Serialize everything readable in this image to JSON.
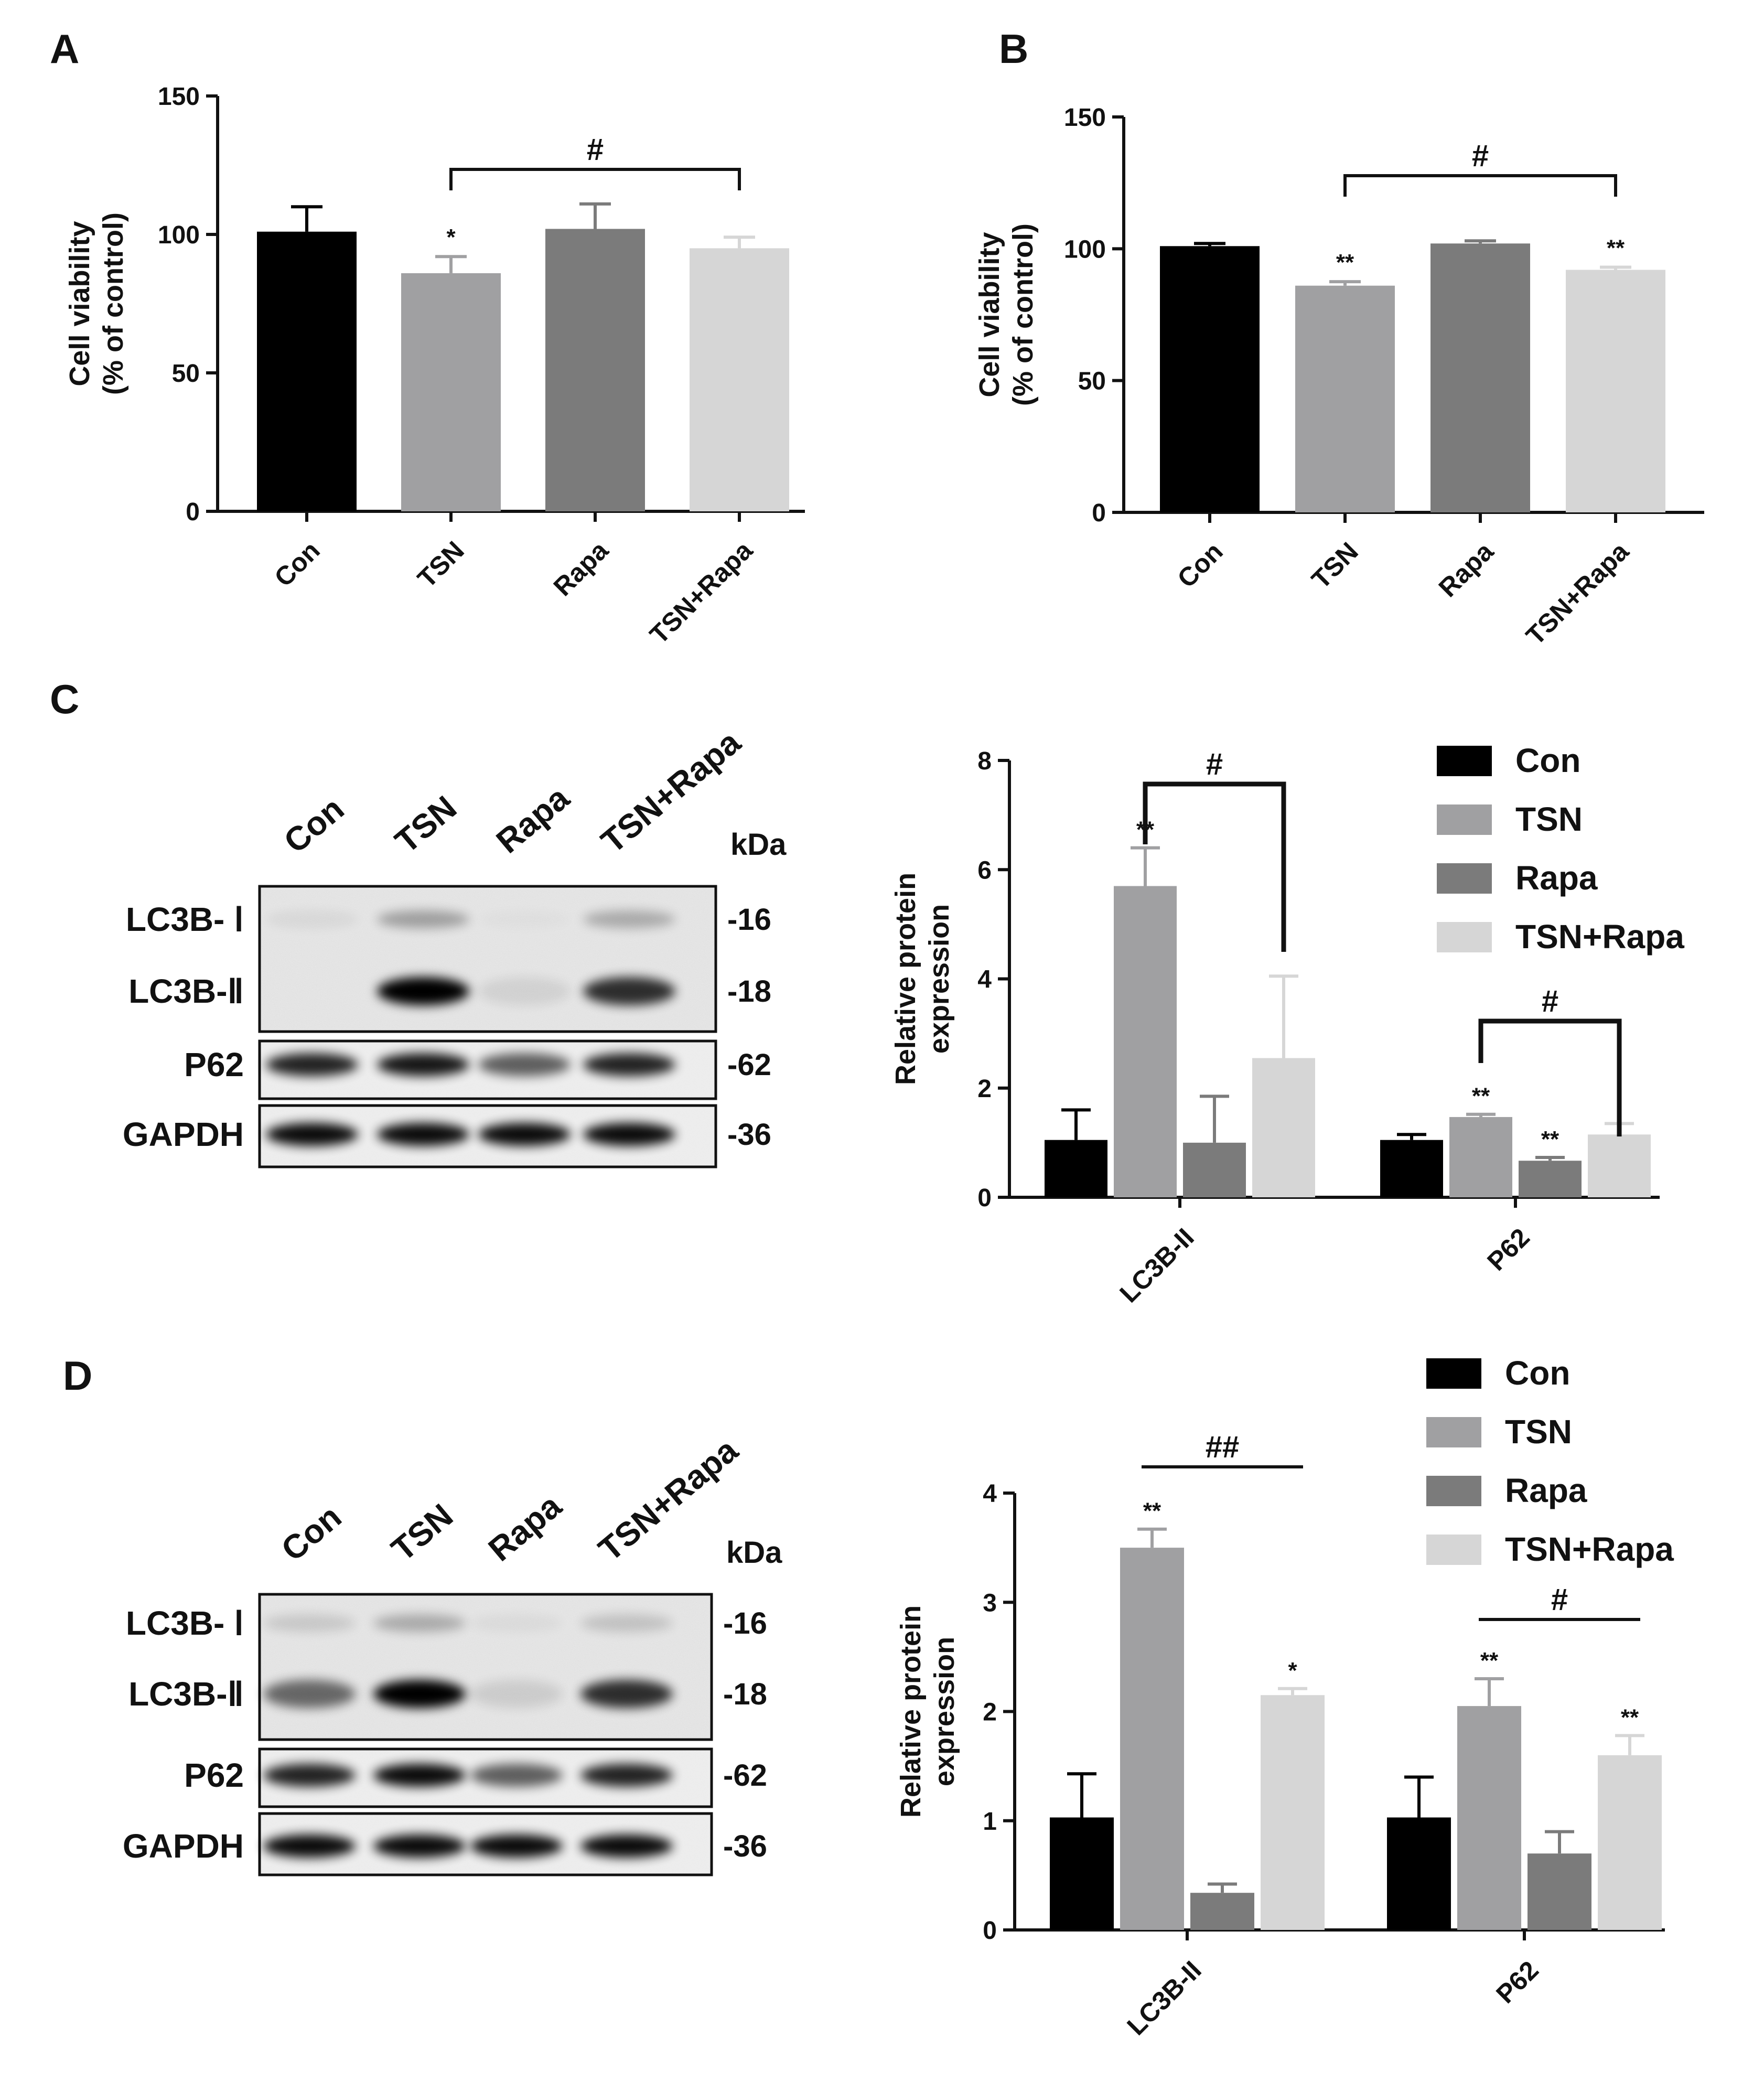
{
  "colors": {
    "Con": "#000000",
    "TSN": "#a0a0a2",
    "Rapa": "#7b7b7b",
    "TSN+Rapa": "#d6d6d6"
  },
  "chart_data": [
    {
      "panel": "A",
      "type": "bar",
      "categories": [
        "Con",
        "TSN",
        "Rapa",
        "TSN+Rapa"
      ],
      "values": [
        101,
        86,
        102,
        95
      ],
      "errors": [
        9,
        6,
        9,
        4
      ],
      "ylabel": [
        "Cell viability",
        "(% of control)"
      ],
      "ylim": [
        0,
        150
      ],
      "yticks": [
        0,
        50,
        100,
        150
      ],
      "marks": [
        "",
        "*",
        "",
        ""
      ],
      "brackets": [
        {
          "from": 1,
          "to": 3,
          "label": "#"
        }
      ],
      "grid": false
    },
    {
      "panel": "B",
      "type": "bar",
      "categories": [
        "Con",
        "TSN",
        "Rapa",
        "TSN+Rapa"
      ],
      "values": [
        101,
        86,
        102,
        92
      ],
      "errors": [
        1,
        1.5,
        1,
        1
      ],
      "ylabel": [
        "Cell viability",
        "(% of control)"
      ],
      "ylim": [
        0,
        150
      ],
      "yticks": [
        0,
        50,
        100,
        150
      ],
      "marks": [
        "",
        "**",
        "",
        "**"
      ],
      "brackets": [
        {
          "from": 1,
          "to": 3,
          "label": "#"
        }
      ],
      "grid": false
    },
    {
      "panel": "C",
      "type": "bar",
      "categories": [
        "LC3B-II",
        "P62"
      ],
      "series": [
        {
          "name": "Con",
          "values": [
            1.05,
            1.05
          ],
          "errors": [
            0.55,
            0.1
          ],
          "marks": [
            "",
            ""
          ]
        },
        {
          "name": "TSN",
          "values": [
            5.7,
            1.47
          ],
          "errors": [
            0.7,
            0.05
          ],
          "marks": [
            "**",
            "**"
          ]
        },
        {
          "name": "Rapa",
          "values": [
            1.0,
            0.67
          ],
          "errors": [
            0.85,
            0.06
          ],
          "marks": [
            "",
            "**"
          ]
        },
        {
          "name": "TSN+Rapa",
          "values": [
            2.55,
            1.15
          ],
          "errors": [
            1.5,
            0.2
          ],
          "marks": [
            "",
            ""
          ]
        }
      ],
      "ylabel": [
        "Relative protein",
        "expression"
      ],
      "ylim": [
        0,
        8
      ],
      "yticks": [
        0,
        2,
        4,
        6,
        8
      ],
      "brackets": [
        {
          "group": 0,
          "from": 1,
          "to": 3,
          "label": "#",
          "style": "bracket"
        },
        {
          "group": 1,
          "from": 1,
          "to": 3,
          "label": "#",
          "style": "bracket"
        }
      ],
      "legend": "top-right",
      "grid": false
    },
    {
      "panel": "D",
      "type": "bar",
      "categories": [
        "LC3B-II",
        "P62"
      ],
      "series": [
        {
          "name": "Con",
          "values": [
            1.03,
            1.03
          ],
          "errors": [
            0.4,
            0.37
          ],
          "marks": [
            "",
            ""
          ]
        },
        {
          "name": "TSN",
          "values": [
            3.5,
            2.05
          ],
          "errors": [
            0.17,
            0.25
          ],
          "marks": [
            "**",
            "**"
          ]
        },
        {
          "name": "Rapa",
          "values": [
            0.34,
            0.7
          ],
          "errors": [
            0.08,
            0.2
          ],
          "marks": [
            "",
            ""
          ]
        },
        {
          "name": "TSN+Rapa",
          "values": [
            2.15,
            1.6
          ],
          "errors": [
            0.06,
            0.18
          ],
          "marks": [
            "*",
            "**"
          ]
        }
      ],
      "ylabel": [
        "Relative protein",
        "expression"
      ],
      "ylim": [
        0,
        4
      ],
      "yticks": [
        0,
        1,
        2,
        3,
        4
      ],
      "brackets": [
        {
          "group": 0,
          "from": 1,
          "to": 3,
          "label": "##",
          "style": "line"
        },
        {
          "group": 1,
          "from": 1,
          "to": 3,
          "label": "#",
          "style": "line"
        }
      ],
      "legend": "top-right",
      "grid": false
    }
  ],
  "blots": [
    {
      "panel": "C",
      "lanes": [
        "Con",
        "TSN",
        "Rapa",
        "TSN+Rapa"
      ],
      "kda_header": "kDa",
      "rows": [
        {
          "labels": [
            "LC3B- Ⅰ",
            "LC3B-Ⅱ"
          ],
          "kda": [
            "-16",
            "-18"
          ]
        },
        {
          "labels": [
            "P62"
          ],
          "kda": [
            "-62"
          ]
        },
        {
          "labels": [
            "GAPDH"
          ],
          "kda": [
            "-36"
          ]
        }
      ],
      "intensities": {
        "lc3b_1": [
          0.05,
          0.3,
          0.02,
          0.25
        ],
        "lc3b_2": [
          0.0,
          1.0,
          0.08,
          0.8
        ],
        "p62": [
          0.85,
          0.9,
          0.6,
          0.85
        ],
        "gapdh": [
          0.95,
          0.95,
          0.95,
          0.95
        ]
      }
    },
    {
      "panel": "D",
      "lanes": [
        "Con",
        "TSN",
        "Rapa",
        "TSN+Rapa"
      ],
      "kda_header": "kDa",
      "rows": [
        {
          "labels": [
            "LC3B- Ⅰ",
            "LC3B-Ⅱ"
          ],
          "kda": [
            "-16",
            "-18"
          ]
        },
        {
          "labels": [
            "P62"
          ],
          "kda": [
            "-62"
          ]
        },
        {
          "labels": [
            "GAPDH"
          ],
          "kda": [
            "-36"
          ]
        }
      ],
      "intensities": {
        "lc3b_1": [
          0.12,
          0.25,
          0.04,
          0.15
        ],
        "lc3b_2": [
          0.55,
          1.0,
          0.1,
          0.8
        ],
        "p62": [
          0.85,
          0.95,
          0.6,
          0.85
        ],
        "gapdh": [
          0.95,
          0.95,
          0.95,
          0.95
        ]
      }
    }
  ]
}
